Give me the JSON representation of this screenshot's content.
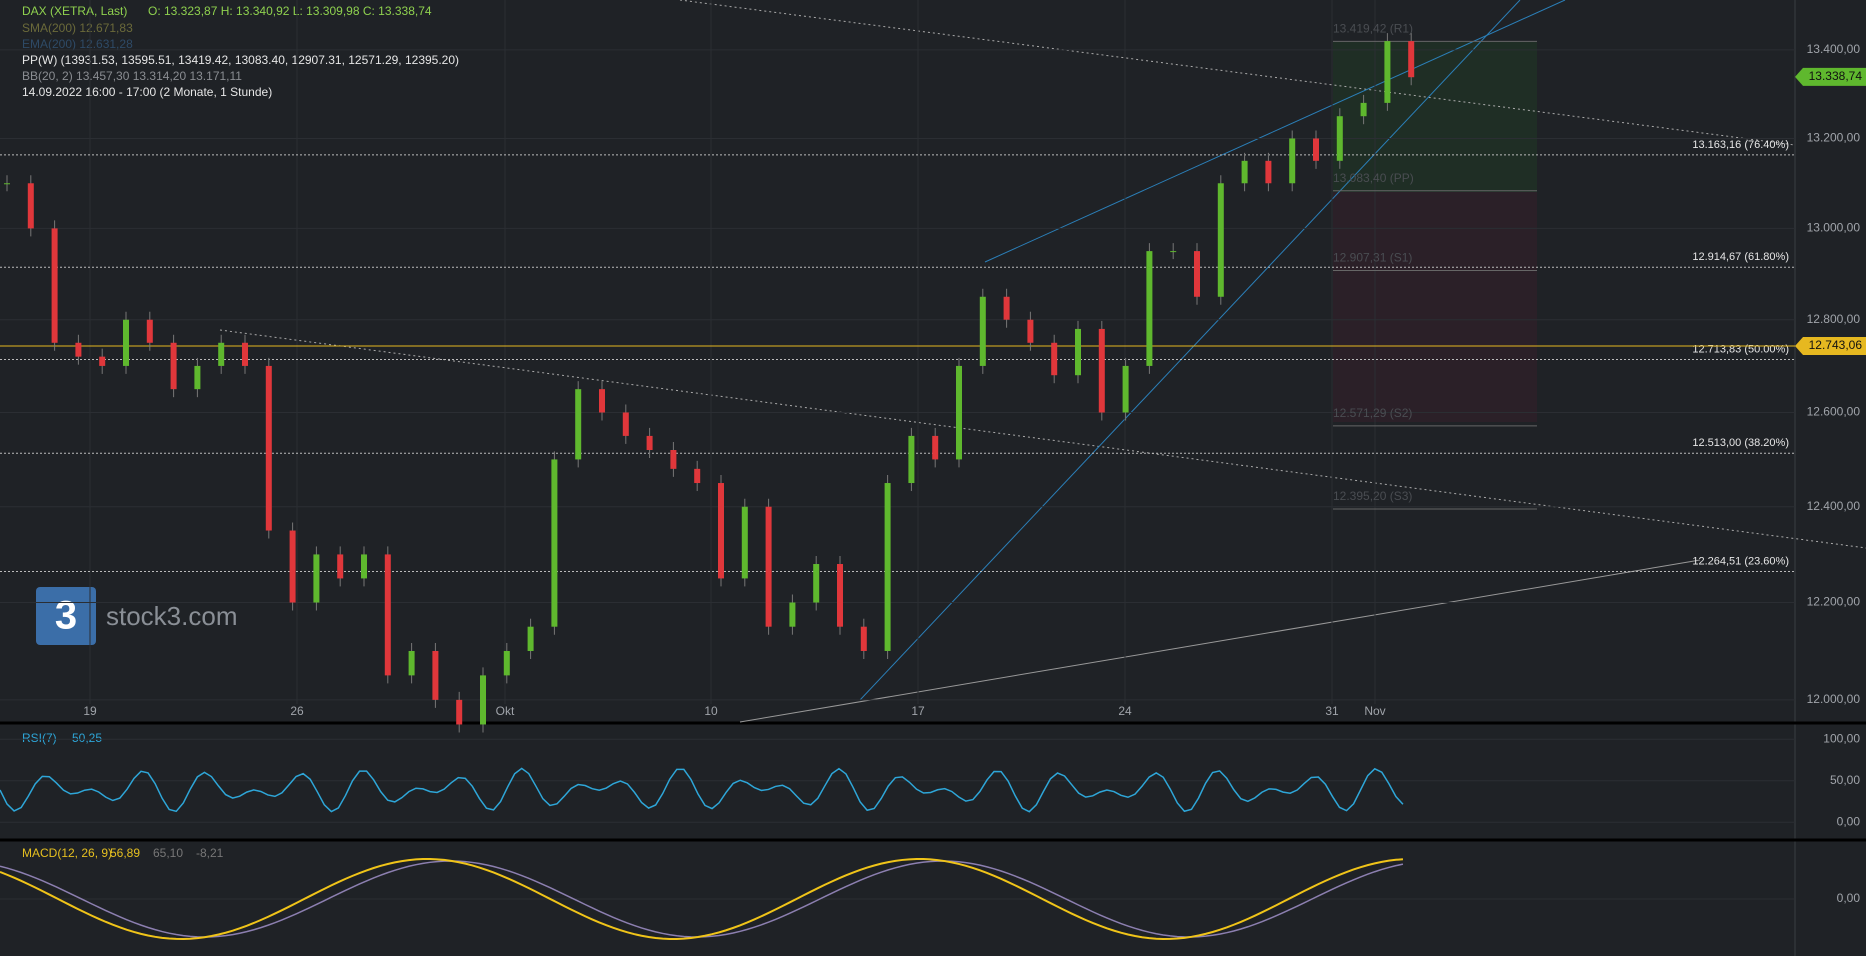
{
  "header": {
    "symbol": "DAX (XETRA, Last)",
    "ohlc": "O: 13.323,87  H: 13.340,92  L: 13.309,98  C: 13.338,74",
    "sma": "SMA(200)  12.671,83",
    "ema": "EMA(200)  12.631,28",
    "pp": "PP(W)  (13931.53, 13595.51, 13419.42, 13083.40, 12907.31, 12571.29, 12395.20)",
    "bb": "BB(20, 2)  13.457,30  13.314,20  13.171,11",
    "time": "14.09.2022 16:00 - 17:00   (2 Monate, 1 Stunde)"
  },
  "logo": "stock3.com",
  "price": {
    "log_scale": true,
    "ylim": [
      11955,
      13514
    ],
    "yticks": [
      {
        "value": 13400,
        "label": "13.400,00"
      },
      {
        "value": 13200,
        "label": "13.200,00"
      },
      {
        "value": 13000,
        "label": "13.000,00"
      },
      {
        "value": 12800,
        "label": "12.800,00"
      },
      {
        "value": 12600,
        "label": "12.600,00"
      },
      {
        "value": 12400,
        "label": "12.400,00"
      },
      {
        "value": 12200,
        "label": "12.200,00"
      },
      {
        "value": 12000,
        "label": "12.000,00"
      }
    ],
    "fib_levels": [
      {
        "value": 13163.16,
        "label": "13.163,16 (76.40%)"
      },
      {
        "value": 12914.67,
        "label": "12.914,67 (61.80%)"
      },
      {
        "value": 12713.83,
        "label": "12.713,83 (50.00%)"
      },
      {
        "value": 12513.0,
        "label": "12.513,00 (38.20%)"
      },
      {
        "value": 12264.51,
        "label": "12.264,51 (23.60%)"
      }
    ],
    "pivots": [
      {
        "value": 13419.42,
        "label": "13.419,42 (R1)"
      },
      {
        "value": 13083.4,
        "label": "13.083,40 (PP)"
      },
      {
        "value": 12907.31,
        "label": "12.907,31 (S1)"
      },
      {
        "value": 12571.29,
        "label": "12.571,29 (S2)"
      },
      {
        "value": 12395.2,
        "label": "12.395,20 (S3)"
      }
    ],
    "last": {
      "value": 13338.74,
      "label": "13.338,74",
      "color": "#5fb82e"
    },
    "marker": {
      "value": 12743.06,
      "label": "12.743,06",
      "color": "#e6b820"
    },
    "close": [
      13100,
      13000,
      12750,
      12720,
      12700,
      12800,
      12750,
      12650,
      12700,
      12750,
      12700,
      12350,
      12200,
      12300,
      12250,
      12300,
      12050,
      12100,
      12000,
      11950,
      12050,
      12100,
      12150,
      12500,
      12650,
      12600,
      12550,
      12520,
      12480,
      12450,
      12250,
      12400,
      12150,
      12200,
      12280,
      12150,
      12100,
      12450,
      12550,
      12500,
      12700,
      12850,
      12800,
      12750,
      12680,
      12780,
      12600,
      12700,
      12950,
      12950,
      12850,
      13100,
      13150,
      13100,
      13200,
      13150,
      13250,
      13280,
      13420,
      13338
    ],
    "up_color": "#5fb82e",
    "down_color": "#e0373b",
    "dates": [
      "19",
      "26",
      "Okt",
      "10",
      "17",
      "24",
      "31",
      "Nov"
    ]
  },
  "rsi": {
    "label": "RSI(7)",
    "value": "50,25",
    "ylim": [
      -19,
      116
    ],
    "yticks": [
      {
        "value": 100,
        "label": "100,00"
      },
      {
        "value": 50,
        "label": "50,00"
      },
      {
        "value": 0,
        "label": "0,00"
      }
    ]
  },
  "macd": {
    "label": "MACD(12, 26, 9)",
    "value": "56,89",
    "signal": "65,10",
    "hist": "-8,21",
    "ylim": [
      -1,
      1
    ],
    "yticks": [
      {
        "value": 0,
        "label": "0,00"
      }
    ]
  }
}
